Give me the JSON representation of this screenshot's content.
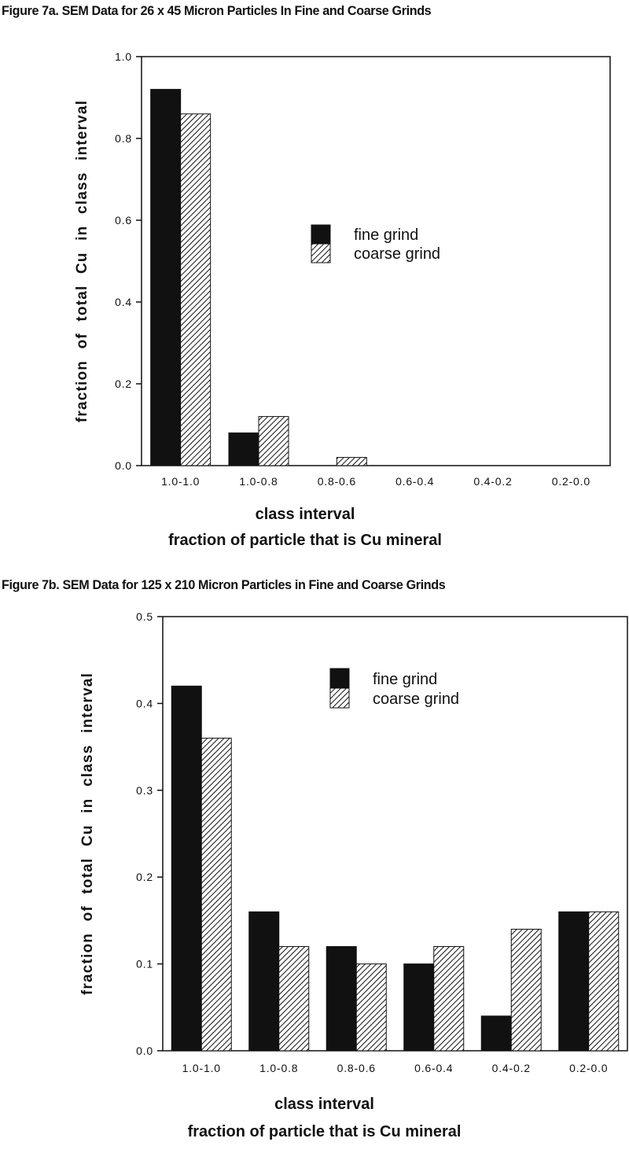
{
  "chart_data": [
    {
      "type": "bar",
      "title": "Figure 7a.  SEM Data for 26 x 45 Micron Particles In Fine and Coarse Grinds",
      "ylabel": "fraction of total Cu in class interval",
      "xlabel": "class interval",
      "xlabel2": "fraction of particle that is Cu mineral",
      "categories": [
        "1.0-1.0",
        "1.0-0.8",
        "0.8-0.6",
        "0.6-0.4",
        "0.4-0.2",
        "0.2-0.0"
      ],
      "series": [
        {
          "name": "fine grind",
          "values": [
            0.92,
            0.08,
            0.0,
            0.0,
            0.0,
            0.0
          ]
        },
        {
          "name": "coarse grind",
          "values": [
            0.86,
            0.12,
            0.02,
            0.0,
            0.0,
            0.0
          ]
        }
      ],
      "ylim": [
        0,
        1.0
      ],
      "yticks": [
        "0.0",
        "0.2",
        "0.4",
        "0.6",
        "0.8",
        "1.0"
      ],
      "legend_position": "center-right",
      "grid": false
    },
    {
      "type": "bar",
      "title": "Figure 7b. SEM Data for 125 x 210 Micron Particles in Fine and Coarse Grinds",
      "ylabel": "fraction of total Cu in class interval",
      "xlabel": "class interval",
      "xlabel2": "fraction of particle that is Cu mineral",
      "categories": [
        "1.0-1.0",
        "1.0-0.8",
        "0.8-0.6",
        "0.6-0.4",
        "0.4-0.2",
        "0.2-0.0"
      ],
      "series": [
        {
          "name": "fine grind",
          "values": [
            0.42,
            0.16,
            0.12,
            0.1,
            0.04,
            0.16
          ]
        },
        {
          "name": "coarse grind",
          "values": [
            0.36,
            0.12,
            0.1,
            0.12,
            0.14,
            0.16
          ]
        }
      ],
      "ylim": [
        0,
        0.5
      ],
      "yticks": [
        "0.0",
        "0.1",
        "0.2",
        "0.3",
        "0.4",
        "0.5"
      ],
      "legend_position": "center-right",
      "grid": false
    }
  ],
  "style": {
    "fine_color": "#111111",
    "coarse_pattern": "diagonal-hatch",
    "axis_color": "#111111"
  }
}
